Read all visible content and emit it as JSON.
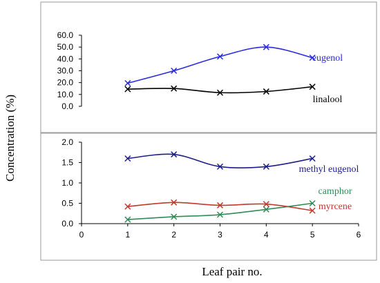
{
  "chart_data": [
    {
      "type": "line",
      "x": [
        1,
        2,
        3,
        4,
        5
      ],
      "ylim": [
        0,
        60
      ],
      "yticks": [
        "0.0",
        "10.0",
        "20.0",
        "30.0",
        "40.0",
        "50.0",
        "60.0"
      ],
      "grid": false,
      "legend": "labels next to lines",
      "series": [
        {
          "name": "eugenol",
          "values": [
            19.5,
            30.0,
            42.0,
            50.0,
            41.0
          ],
          "color": "#2929e0",
          "marker": "x"
        },
        {
          "name": "linalool",
          "values": [
            14.5,
            15.0,
            11.5,
            12.5,
            16.5
          ],
          "color": "#000000",
          "marker": "x"
        }
      ]
    },
    {
      "type": "line",
      "x": [
        1,
        2,
        3,
        4,
        5
      ],
      "xlim": [
        0,
        6
      ],
      "xticks": [
        "0",
        "1",
        "2",
        "3",
        "4",
        "5",
        "6"
      ],
      "ylim": [
        0,
        2
      ],
      "yticks": [
        "0.0",
        "0.5",
        "1.0",
        "1.5",
        "2.0"
      ],
      "xlabel": "Leaf pair no.",
      "ylabel": "Concentration (%)",
      "grid": false,
      "legend": "labels next to lines",
      "series": [
        {
          "name": "methyl eugenol",
          "values": [
            1.6,
            1.7,
            1.4,
            1.4,
            1.6
          ],
          "color": "#1c1c8c",
          "marker": "x"
        },
        {
          "name": "camphor",
          "values": [
            0.1,
            0.17,
            0.22,
            0.35,
            0.5
          ],
          "color": "#2e8b57",
          "marker": "x"
        },
        {
          "name": "myrcene",
          "values": [
            0.42,
            0.52,
            0.45,
            0.48,
            0.32
          ],
          "color": "#c0392b",
          "marker": "x"
        }
      ]
    }
  ]
}
